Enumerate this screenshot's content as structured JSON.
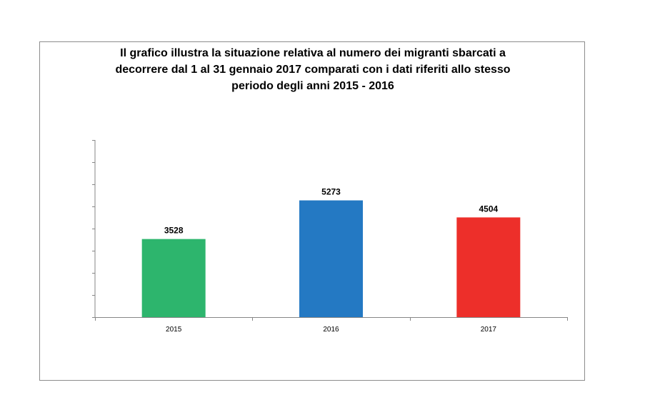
{
  "chart_data": {
    "type": "bar",
    "title_lines": [
      "Il grafico illustra la situazione relativa al numero dei migranti sbarcati a",
      "decorrere dal 1 al 31 gennaio 2017 comparati con i dati riferiti allo stesso",
      "periodo degli anni 2015 - 2016"
    ],
    "categories": [
      "2015",
      "2016",
      "2017"
    ],
    "values": [
      3528,
      5273,
      4504
    ],
    "colors": [
      "#2db56d",
      "#2479c3",
      "#ed2f2a"
    ],
    "ylim": [
      0,
      8000
    ],
    "y_tick_step": 1000,
    "y_tick_labels_visible": false,
    "grid": false,
    "xlabel": "",
    "ylabel": ""
  }
}
